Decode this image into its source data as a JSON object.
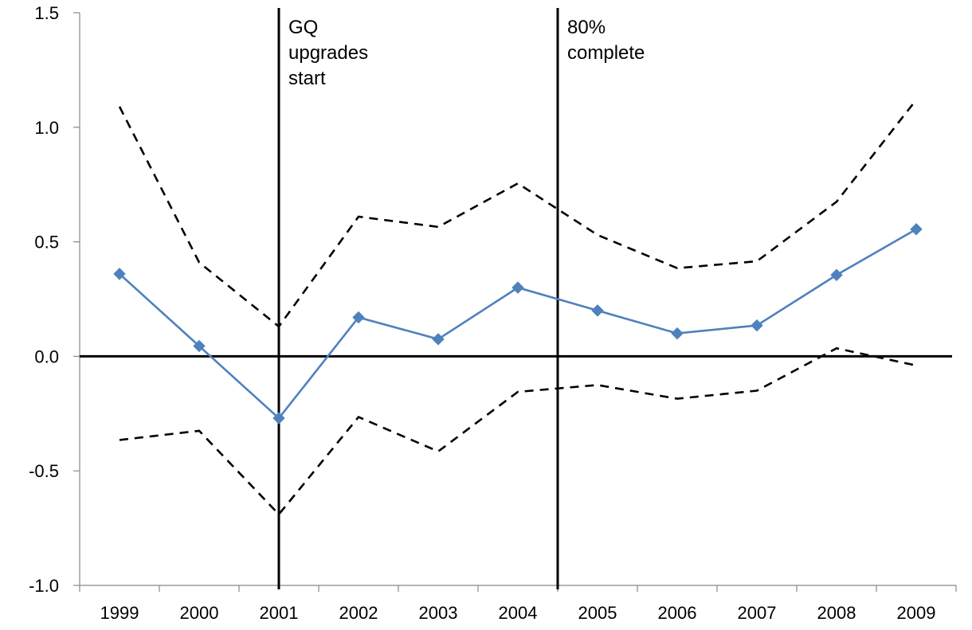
{
  "chart_data": {
    "type": "line",
    "title": "",
    "xlabel": "",
    "ylabel": "",
    "categories": [
      "1999",
      "2000",
      "2001",
      "2002",
      "2003",
      "2004",
      "2005",
      "2006",
      "2007",
      "2008",
      "2009"
    ],
    "ylim": [
      -1.0,
      1.5
    ],
    "yticks": [
      "-1.0",
      "-0.5",
      "0.0",
      "0.5",
      "1.0",
      "1.5"
    ],
    "grid": false,
    "legend": "none",
    "series": [
      {
        "role": "estimate",
        "style": "solid-diamond-markers",
        "color": "#4f81bd",
        "values": [
          0.36,
          0.045,
          -0.27,
          0.17,
          0.075,
          0.3,
          0.2,
          0.1,
          0.135,
          0.355,
          0.555
        ]
      },
      {
        "role": "upper-bound",
        "style": "dashed",
        "color": "#000000",
        "values": [
          1.09,
          0.41,
          0.13,
          0.61,
          0.565,
          0.755,
          0.53,
          0.385,
          0.415,
          0.675,
          1.12
        ]
      },
      {
        "role": "lower-bound",
        "style": "dashed",
        "color": "#000000",
        "values": [
          -0.365,
          -0.325,
          -0.69,
          -0.265,
          -0.415,
          -0.155,
          -0.125,
          -0.185,
          -0.15,
          0.035,
          -0.04
        ]
      }
    ],
    "reference_lines": [
      {
        "after_category": "2001",
        "position": "at",
        "label_lines": [
          "GQ",
          "upgrades",
          "start"
        ]
      },
      {
        "after_category": "2004",
        "position": "between",
        "label_lines": [
          "80%",
          "complete"
        ]
      }
    ],
    "zero_line": 0.0
  }
}
